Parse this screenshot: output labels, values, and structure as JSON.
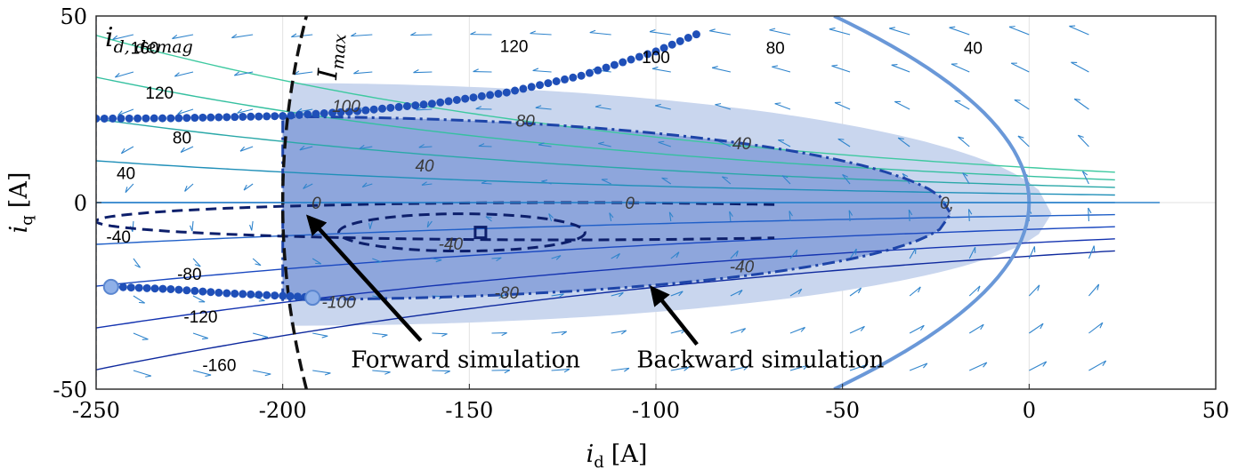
{
  "chart_data": {
    "type": "contour",
    "title": "",
    "xlabel": "i_d [A]",
    "ylabel": "i_q [A]",
    "xlabel_main": "i",
    "xlabel_sub": "d",
    "xlabel_unit": "[A]",
    "ylabel_main": "i",
    "ylabel_sub": "q",
    "ylabel_unit": "[A]",
    "xlim": [
      -250,
      50
    ],
    "ylim": [
      -50,
      50
    ],
    "grid": true,
    "x_ticks": [
      "-250",
      "-200",
      "-150",
      "-100",
      "-50",
      "0",
      "50"
    ],
    "y_ticks": [
      "50",
      "0",
      "-50"
    ],
    "colors": {
      "outer_region": "#c9d6ee",
      "inner_region": "#8ea6dc",
      "dots": "#1f4fb8",
      "boundary": "#0d1f6b",
      "parabola": "#6a98d8",
      "arrows": "#2f84cc"
    },
    "region_outer": {
      "center_y": -3,
      "left_x": -198,
      "right_x": 6,
      "top_y": 32,
      "bottom_y": -33
    },
    "region_inner": {
      "center_y": -3,
      "left_x": -200,
      "right_x": -21,
      "top_y": 23,
      "bottom_y": -26
    },
    "forward_boundary": {
      "center_y": -5,
      "left_x": -250,
      "right_x": 0,
      "top_y": 0,
      "bottom_y": -10
    },
    "small_ellipse": {
      "center_x": -152,
      "center_y": -8,
      "rx": 33,
      "ry": 5
    },
    "imax_circle_center_x": 0,
    "imax_radius": 200,
    "id_demag": -250,
    "fixed_point": {
      "x": -147,
      "y": -8
    },
    "dot_curve_upper": [
      [
        -250,
        22.5
      ],
      [
        -230,
        22.6
      ],
      [
        -200,
        23.2
      ],
      [
        -180,
        24.5
      ],
      [
        -160,
        26.5
      ],
      [
        -140,
        29.5
      ],
      [
        -120,
        34
      ],
      [
        -100,
        40.5
      ],
      [
        -87,
        46
      ]
    ],
    "dot_curve_lower": [
      [
        -247,
        -22.5
      ],
      [
        -230,
        -23.2
      ],
      [
        -215,
        -24.3
      ],
      [
        -200,
        -25
      ],
      [
        -192,
        -25.4
      ]
    ],
    "dot_endpoints": [
      [
        -246,
        -22.6
      ],
      [
        -192,
        -25.5
      ]
    ],
    "contour_labels": [
      {
        "text": "160",
        "x": -237,
        "y": 41.5,
        "color": "#000000"
      },
      {
        "text": "120",
        "x": -233,
        "y": 29.5,
        "color": "#000000"
      },
      {
        "text": "80",
        "x": -227,
        "y": 17.5,
        "color": "#000000"
      },
      {
        "text": "40",
        "x": -242,
        "y": 8,
        "color": "#000000"
      },
      {
        "text": "-40",
        "x": -244,
        "y": -9,
        "color": "#000000"
      },
      {
        "text": "-80",
        "x": -225,
        "y": -19,
        "color": "#000000"
      },
      {
        "text": "-120",
        "x": -222,
        "y": -30.5,
        "color": "#000000"
      },
      {
        "text": "-160",
        "x": -217,
        "y": -43.5,
        "color": "#000000"
      },
      {
        "text": "120",
        "x": -138,
        "y": 42,
        "color": "#000000"
      },
      {
        "text": "80",
        "x": -68,
        "y": 41.5,
        "color": "#000000"
      },
      {
        "text": "40",
        "x": -15,
        "y": 41.5,
        "color": "#000000"
      },
      {
        "text": "100",
        "x": -100,
        "y": 39,
        "color": "#000000"
      },
      {
        "text": "100",
        "x": -183,
        "y": 26,
        "color": "#3a3a3a"
      },
      {
        "text": "80",
        "x": -135,
        "y": 22,
        "color": "#3a3a3a"
      },
      {
        "text": "40",
        "x": -77,
        "y": 16,
        "color": "#3a3a3a"
      },
      {
        "text": "40",
        "x": -162,
        "y": 10,
        "color": "#3a3a3a"
      },
      {
        "text": "0",
        "x": -191,
        "y": 0,
        "color": "#3a3a3a"
      },
      {
        "text": "0",
        "x": -107,
        "y": 0,
        "color": "#3a3a3a"
      },
      {
        "text": "0,",
        "x": -22,
        "y": 0,
        "color": "#3a3a3a"
      },
      {
        "text": "-40",
        "x": -155,
        "y": -11,
        "color": "#3a3a3a"
      },
      {
        "text": "-40",
        "x": -77,
        "y": -17,
        "color": "#3a3a3a"
      },
      {
        "text": "-80",
        "x": -140,
        "y": -24,
        "color": "#3a3a3a"
      },
      {
        "text": "-100",
        "x": -185,
        "y": -26.5,
        "color": "#3a3a3a"
      }
    ],
    "annotations": {
      "forward": "Forward simulation",
      "backward": "Backward simulation",
      "forward_text_at": [
        -151,
        -42
      ],
      "backward_text_at": [
        -72,
        -42
      ],
      "forward_arrow_from": [
        -163,
        -37
      ],
      "forward_arrow_to": [
        -193,
        -4
      ],
      "backward_arrow_from": [
        -89,
        -38
      ],
      "backward_arrow_to": [
        -101,
        -23
      ]
    },
    "label_imax": {
      "main": "I",
      "sub": "max"
    },
    "label_id_demag": {
      "main": "i",
      "sub": "d, demag"
    }
  }
}
